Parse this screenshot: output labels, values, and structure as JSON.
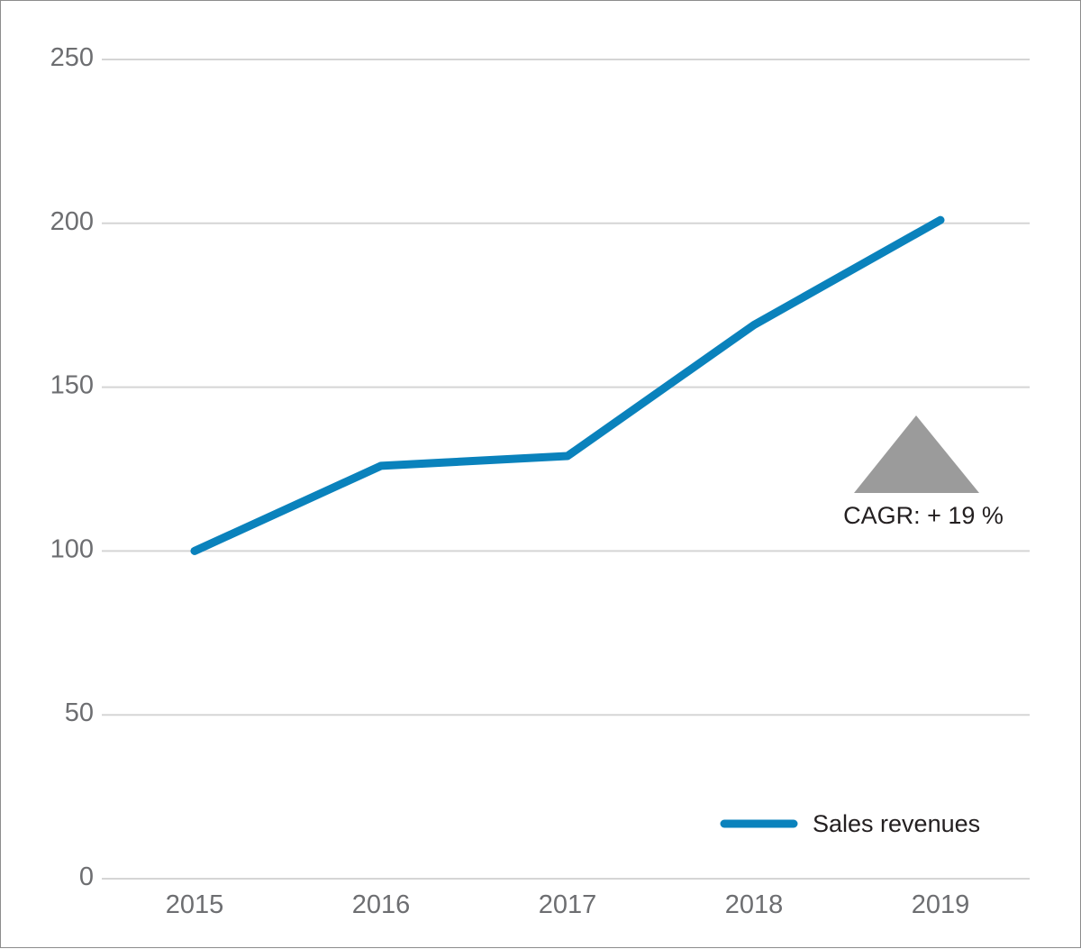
{
  "colors": {
    "series": "#0a82bc",
    "grid": "#d5d5d5",
    "tick_text": "#6d6e71",
    "annotation_fill": "#9b9b9b",
    "text": "#231f20",
    "border": "#8c8c8c"
  },
  "chart_data": {
    "type": "line",
    "title": "",
    "xlabel": "",
    "ylabel": "",
    "categories": [
      "2015",
      "2016",
      "2017",
      "2018",
      "2019"
    ],
    "series": [
      {
        "name": "Sales revenues",
        "values": [
          100,
          126,
          129,
          169,
          201
        ]
      }
    ],
    "ylim": [
      0,
      250
    ],
    "yticks": [
      "0",
      "50",
      "100",
      "150",
      "200",
      "250"
    ],
    "grid": true,
    "legend": "bottom-right",
    "annotation": {
      "icon": "up-triangle-icon",
      "text": "CAGR: + 19 %"
    }
  }
}
